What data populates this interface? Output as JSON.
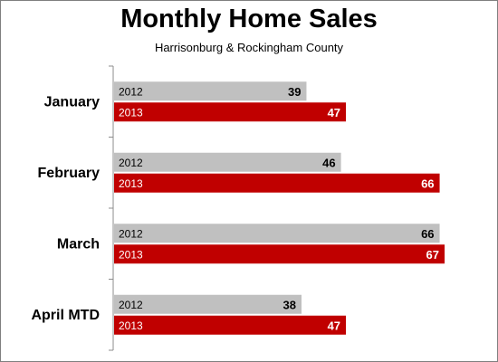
{
  "chart_data": {
    "type": "bar",
    "orientation": "horizontal",
    "title": "Monthly Home Sales",
    "subtitle": "Harrisonburg & Rockingham County",
    "categories": [
      "January",
      "February",
      "March",
      "April MTD"
    ],
    "series": [
      {
        "name": "2012",
        "values": [
          39,
          46,
          66,
          38
        ],
        "color": "#c0c0c0",
        "label_color": "#000000"
      },
      {
        "name": "2013",
        "values": [
          47,
          66,
          67,
          47
        ],
        "color": "#c00000",
        "label_color": "#ffffff"
      }
    ],
    "xlim": [
      0,
      67
    ],
    "grid": false,
    "legend": "none",
    "data_labels": true
  }
}
